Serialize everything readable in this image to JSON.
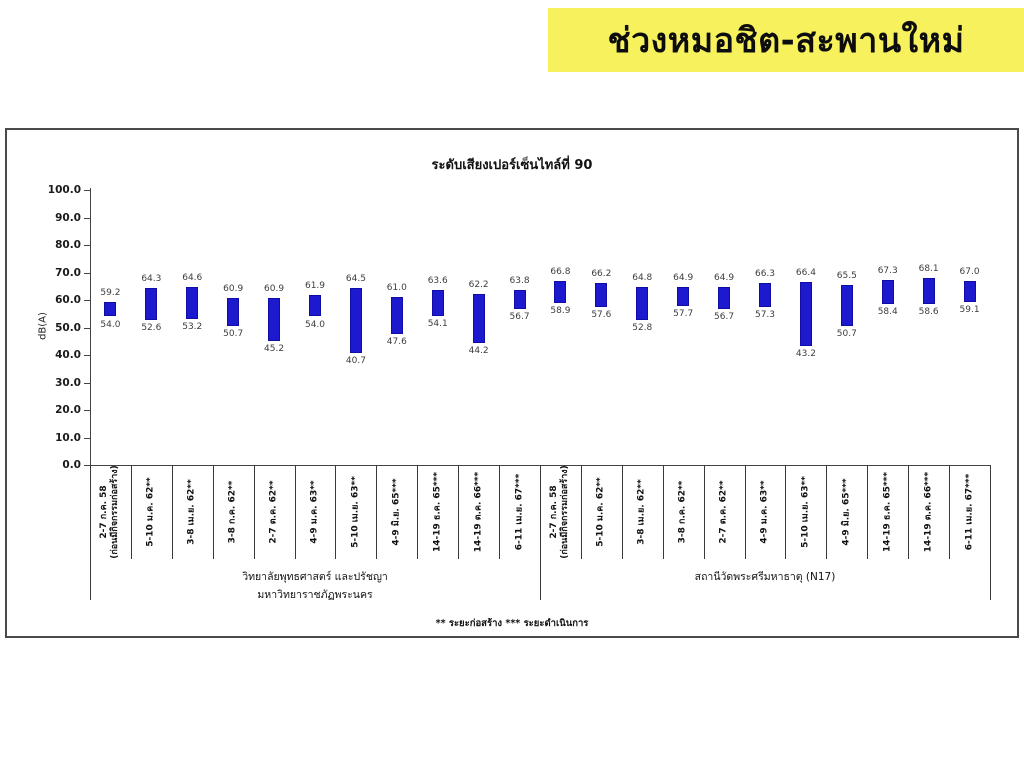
{
  "banner": {
    "title": "ช่วงหมอชิต-สะพานใหม่",
    "bg_color": "#f7f15e"
  },
  "chart_data": {
    "type": "bar",
    "subtype": "floating-range-bar",
    "title": "ระดับเสียงเปอร์เซ็นไทล์ที่ 90",
    "ylabel": "dB(A)",
    "ylim": [
      0,
      100
    ],
    "ytick_step": 10,
    "grid": false,
    "legend": "none",
    "bar_color": "#1c19cf",
    "categories": [
      "2-7 ก.ค. 58\n(ก่อนมีกิจกรรมก่อสร้าง)",
      "5-10 ม.ค. 62**",
      "3-8 เม.ย. 62**",
      "3-8 ก.ค. 62**",
      "2-7 ต.ค. 62**",
      "4-9 ม.ค. 63**",
      "5-10 เม.ย. 63**",
      "4-9 มิ.ย. 65***",
      "14-19 ธ.ค. 65***",
      "14-19 ต.ค. 66***",
      "6-11 เม.ย. 67***",
      "2-7 ก.ค. 58\n(ก่อนมีกิจกรรมก่อสร้าง)",
      "5-10 ม.ค. 62**",
      "3-8 เม.ย. 62**",
      "3-8 ก.ค. 62**",
      "2-7 ต.ค. 62**",
      "4-9 ม.ค. 63**",
      "5-10 เม.ย. 63**",
      "4-9 มิ.ย. 65***",
      "14-19 ธ.ค. 65***",
      "14-19 ต.ค. 66***",
      "6-11 เม.ย. 67***"
    ],
    "ranges": [
      [
        54.0,
        59.2
      ],
      [
        52.6,
        64.3
      ],
      [
        53.2,
        64.6
      ],
      [
        50.7,
        60.9
      ],
      [
        45.2,
        60.9
      ],
      [
        54.0,
        61.9
      ],
      [
        40.7,
        64.5
      ],
      [
        47.6,
        61.0
      ],
      [
        54.1,
        63.6
      ],
      [
        44.2,
        62.2
      ],
      [
        56.7,
        63.8
      ],
      [
        58.9,
        66.8
      ],
      [
        57.6,
        66.2
      ],
      [
        52.8,
        64.8
      ],
      [
        57.7,
        64.9
      ],
      [
        56.7,
        64.9
      ],
      [
        57.3,
        66.3
      ],
      [
        43.2,
        66.4
      ],
      [
        50.7,
        65.5
      ],
      [
        58.4,
        67.3
      ],
      [
        58.6,
        68.1
      ],
      [
        59.1,
        67.0
      ]
    ],
    "groups": [
      {
        "label_lines": [
          "วิทยาลัยพุทธศาสตร์ และปรัชญา",
          "มหาวิทยาราชภัฏพระนคร"
        ],
        "span": 11
      },
      {
        "label_lines": [
          "สถานีวัดพระศรีมหาธาตุ (N17)"
        ],
        "span": 11
      }
    ],
    "footnote": "** ระยะก่อสร้าง      *** ระยะดำเนินการ"
  }
}
